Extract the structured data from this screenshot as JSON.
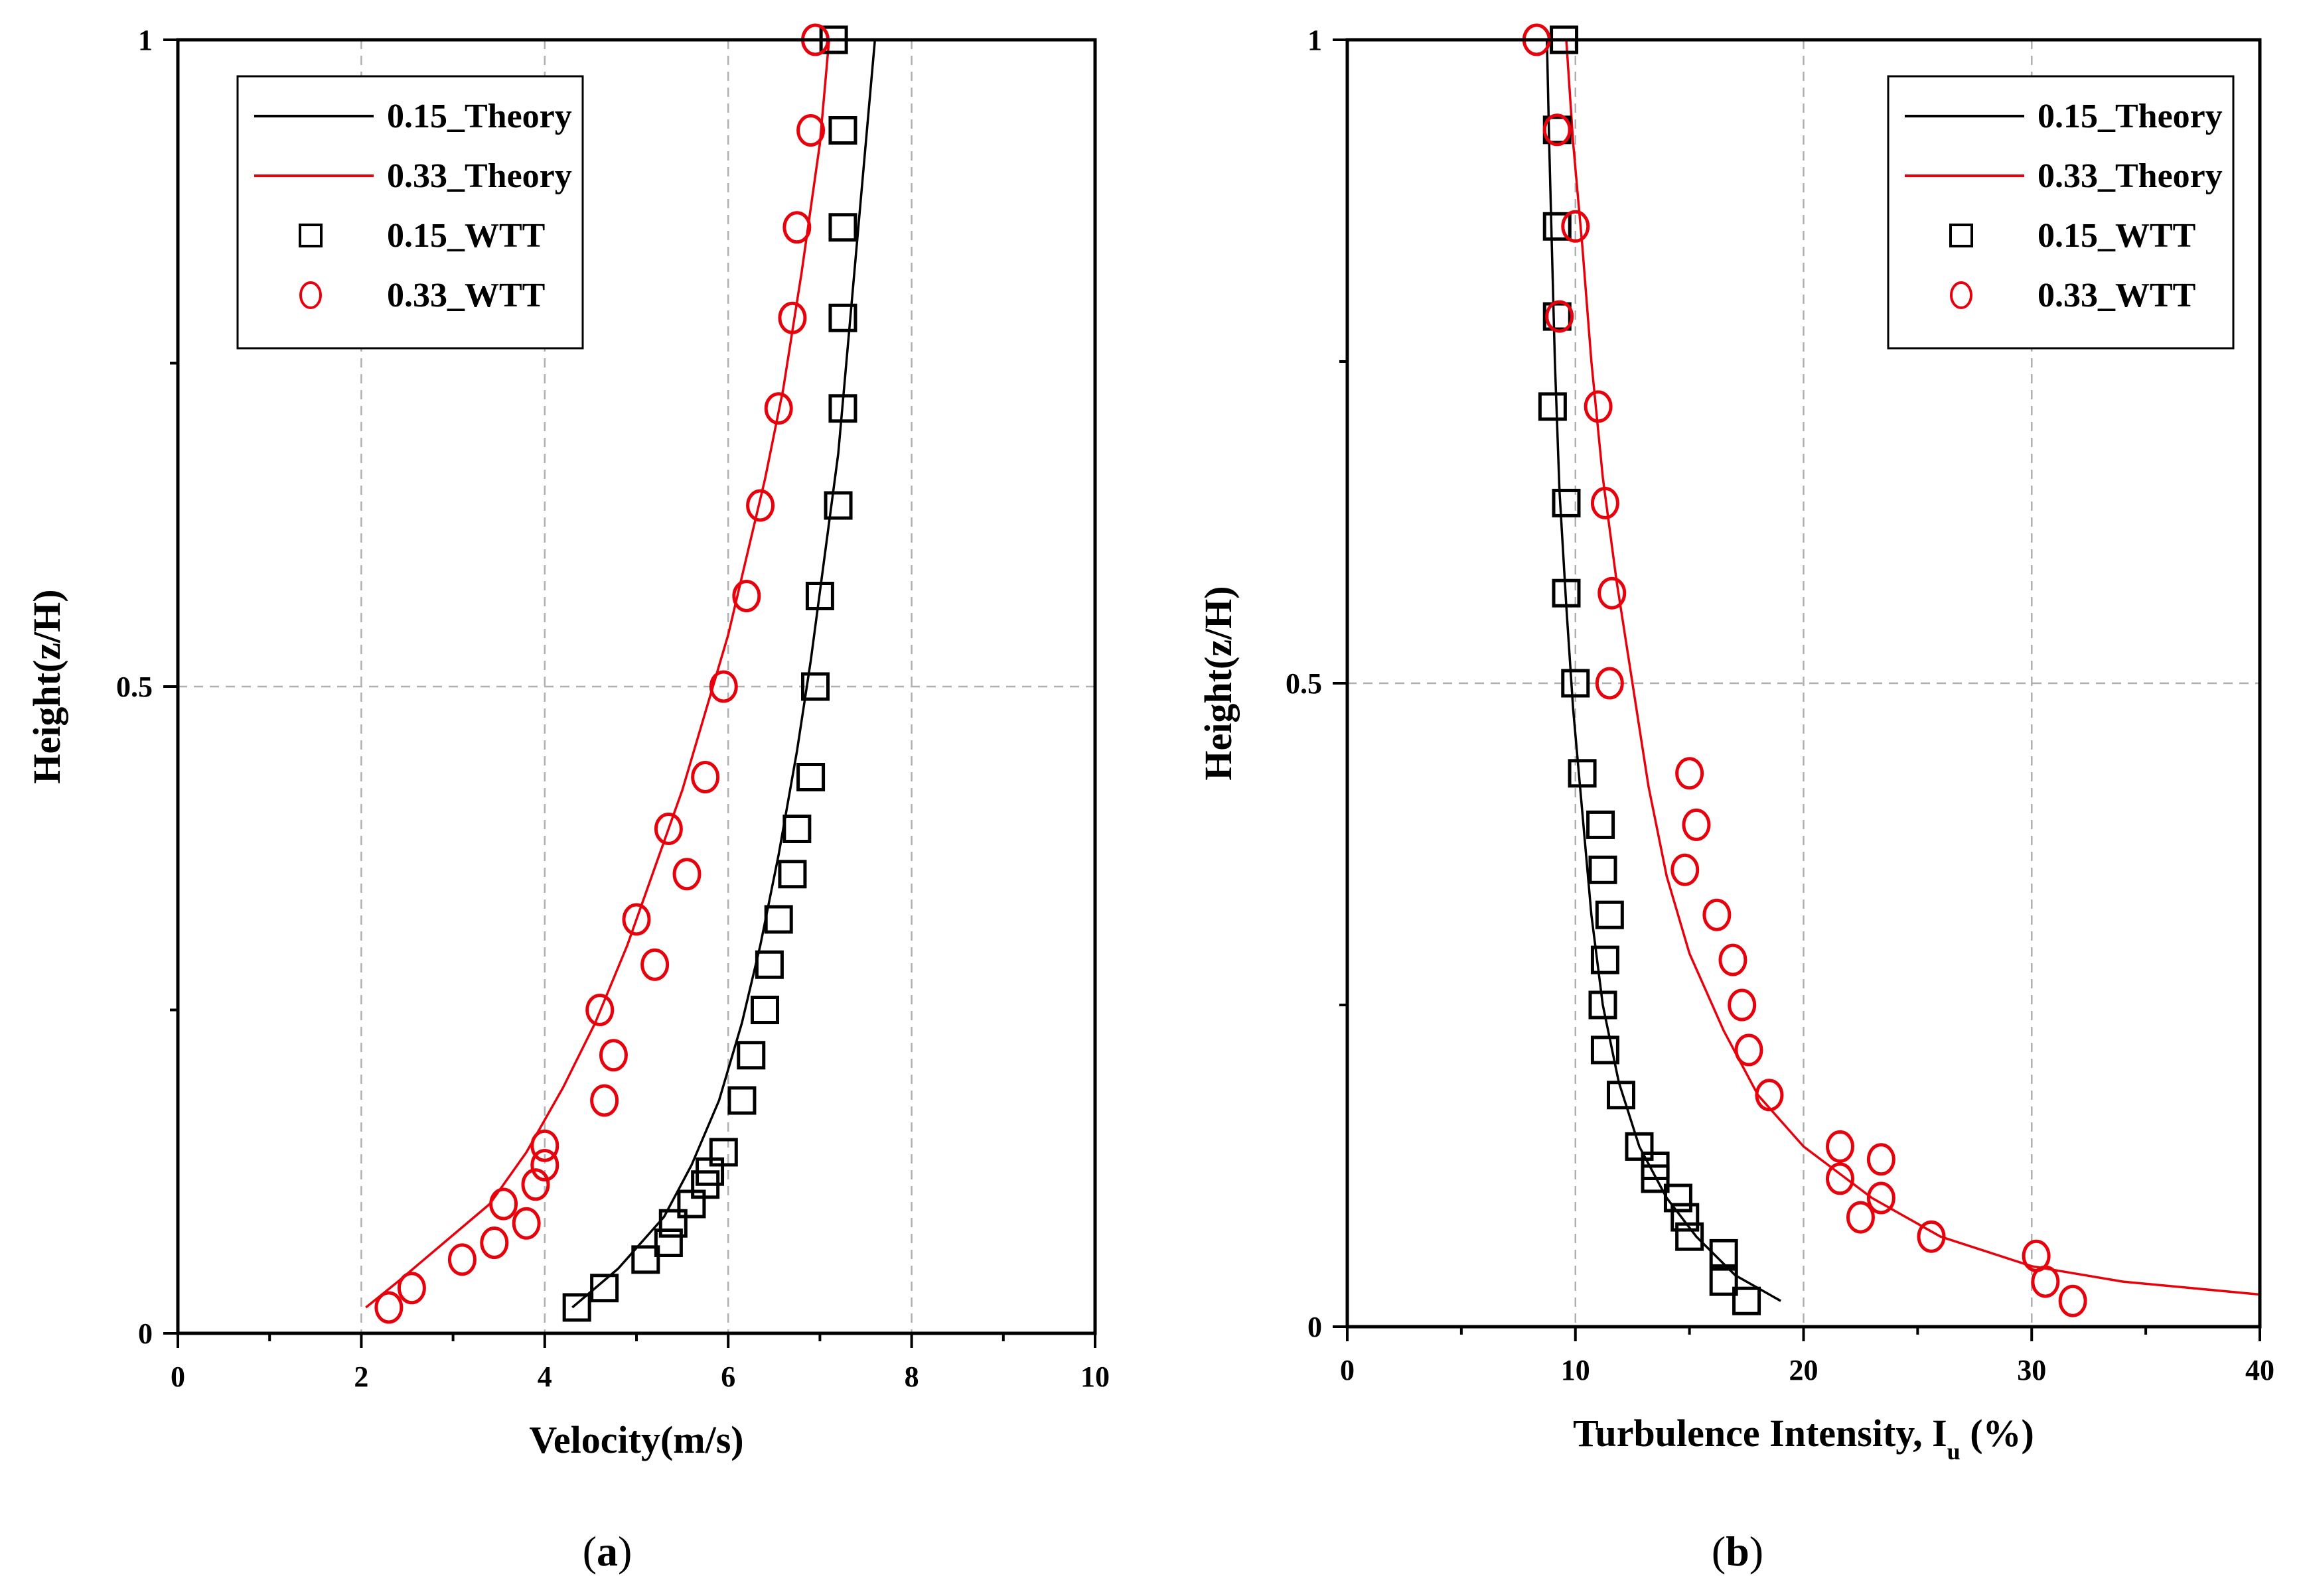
{
  "chart_data": [
    {
      "type": "line",
      "panel_label": "a",
      "xlabel": "Velocity(m/s)",
      "ylabel": "Height(z/H)",
      "xlim": [
        0,
        10
      ],
      "ylim": [
        0,
        1
      ],
      "xticks": [
        "0",
        "2",
        "4",
        "6",
        "8",
        "10"
      ],
      "yticks": [
        "0",
        "0.5",
        "1"
      ],
      "grid": "dashed",
      "legend_position": "top-left",
      "series": [
        {
          "name": "0.15_Theory",
          "kind": "line",
          "color": "#000000",
          "points": [
            [
              4.3,
              0.02
            ],
            [
              4.8,
              0.05
            ],
            [
              5.3,
              0.09
            ],
            [
              5.6,
              0.13
            ],
            [
              5.9,
              0.18
            ],
            [
              6.15,
              0.24
            ],
            [
              6.35,
              0.3
            ],
            [
              6.55,
              0.37
            ],
            [
              6.75,
              0.45
            ],
            [
              6.9,
              0.52
            ],
            [
              7.05,
              0.6
            ],
            [
              7.2,
              0.68
            ],
            [
              7.3,
              0.76
            ],
            [
              7.4,
              0.84
            ],
            [
              7.5,
              0.92
            ],
            [
              7.6,
              1.0
            ]
          ]
        },
        {
          "name": "0.33_Theory",
          "kind": "line",
          "color": "#e8000b",
          "points": [
            [
              2.05,
              0.02
            ],
            [
              2.4,
              0.04
            ],
            [
              2.9,
              0.07
            ],
            [
              3.4,
              0.1
            ],
            [
              3.8,
              0.14
            ],
            [
              4.2,
              0.19
            ],
            [
              4.55,
              0.24
            ],
            [
              4.9,
              0.3
            ],
            [
              5.2,
              0.36
            ],
            [
              5.5,
              0.42
            ],
            [
              5.75,
              0.48
            ],
            [
              6.0,
              0.54
            ],
            [
              6.2,
              0.6
            ],
            [
              6.4,
              0.66
            ],
            [
              6.6,
              0.73
            ],
            [
              6.8,
              0.82
            ],
            [
              7.0,
              0.92
            ],
            [
              7.1,
              1.0
            ]
          ]
        },
        {
          "name": "0.15_WTT",
          "kind": "square",
          "color": "#000000",
          "points": [
            [
              4.35,
              0.02
            ],
            [
              4.65,
              0.035
            ],
            [
              5.1,
              0.057
            ],
            [
              5.35,
              0.07
            ],
            [
              5.4,
              0.085
            ],
            [
              5.6,
              0.1
            ],
            [
              5.75,
              0.115
            ],
            [
              5.8,
              0.125
            ],
            [
              5.95,
              0.14
            ],
            [
              6.15,
              0.18
            ],
            [
              6.25,
              0.215
            ],
            [
              6.4,
              0.25
            ],
            [
              6.45,
              0.285
            ],
            [
              6.55,
              0.32
            ],
            [
              6.7,
              0.355
            ],
            [
              6.75,
              0.39
            ],
            [
              6.9,
              0.43
            ],
            [
              6.95,
              0.5
            ],
            [
              7.0,
              0.57
            ],
            [
              7.2,
              0.64
            ],
            [
              7.25,
              0.715
            ],
            [
              7.25,
              0.785
            ],
            [
              7.25,
              0.855
            ],
            [
              7.25,
              0.93
            ],
            [
              7.15,
              1.0
            ]
          ]
        },
        {
          "name": "0.33_WTT",
          "kind": "circle",
          "color": "#e8000b",
          "points": [
            [
              2.3,
              0.02
            ],
            [
              2.55,
              0.035
            ],
            [
              3.1,
              0.057
            ],
            [
              3.45,
              0.07
            ],
            [
              3.55,
              0.1
            ],
            [
              3.8,
              0.085
            ],
            [
              3.9,
              0.115
            ],
            [
              4.0,
              0.13
            ],
            [
              4.0,
              0.145
            ],
            [
              4.65,
              0.18
            ],
            [
              4.6,
              0.25
            ],
            [
              4.75,
              0.215
            ],
            [
              5.0,
              0.32
            ],
            [
              5.2,
              0.285
            ],
            [
              5.35,
              0.39
            ],
            [
              5.55,
              0.355
            ],
            [
              5.75,
              0.43
            ],
            [
              5.95,
              0.5
            ],
            [
              6.2,
              0.57
            ],
            [
              6.35,
              0.64
            ],
            [
              6.55,
              0.715
            ],
            [
              6.7,
              0.785
            ],
            [
              6.75,
              0.855
            ],
            [
              6.9,
              0.93
            ],
            [
              6.95,
              1.0
            ]
          ]
        }
      ]
    },
    {
      "type": "line",
      "panel_label": "b",
      "xlabel_main": "Turbulence Intensity, I",
      "xlabel_sub": "u",
      "xlabel_tail": " (%)",
      "ylabel": "Height(z/H)",
      "xlim": [
        0,
        40
      ],
      "ylim": [
        0,
        1
      ],
      "xticks": [
        "0",
        "10",
        "20",
        "30",
        "40"
      ],
      "yticks": [
        "0",
        "0.5",
        "1"
      ],
      "grid": "dashed",
      "legend_position": "top-right",
      "series": [
        {
          "name": "0.15_Theory",
          "kind": "line",
          "color": "#000000",
          "points": [
            [
              19.0,
              0.02
            ],
            [
              17.0,
              0.04
            ],
            [
              15.3,
              0.07
            ],
            [
              14.0,
              0.1
            ],
            [
              12.8,
              0.14
            ],
            [
              11.9,
              0.19
            ],
            [
              11.2,
              0.25
            ],
            [
              10.7,
              0.32
            ],
            [
              10.3,
              0.4
            ],
            [
              9.9,
              0.48
            ],
            [
              9.6,
              0.56
            ],
            [
              9.3,
              0.65
            ],
            [
              9.1,
              0.75
            ],
            [
              8.95,
              0.85
            ],
            [
              8.85,
              0.92
            ],
            [
              8.75,
              1.0
            ]
          ]
        },
        {
          "name": "0.33_Theory",
          "kind": "line",
          "color": "#e8000b",
          "points": [
            [
              40,
              0.025
            ],
            [
              34,
              0.035
            ],
            [
              30,
              0.047
            ],
            [
              26,
              0.07
            ],
            [
              23,
              0.1
            ],
            [
              20,
              0.14
            ],
            [
              18.0,
              0.18
            ],
            [
              16.5,
              0.23
            ],
            [
              15.0,
              0.29
            ],
            [
              14.0,
              0.35
            ],
            [
              13.2,
              0.42
            ],
            [
              12.5,
              0.5
            ],
            [
              11.8,
              0.58
            ],
            [
              11.2,
              0.66
            ],
            [
              10.7,
              0.75
            ],
            [
              10.3,
              0.84
            ],
            [
              9.9,
              0.92
            ],
            [
              9.6,
              1.0
            ]
          ]
        },
        {
          "name": "0.15_WTT",
          "kind": "square",
          "color": "#000000",
          "points": [
            [
              17.5,
              0.02
            ],
            [
              16.5,
              0.035
            ],
            [
              16.5,
              0.057
            ],
            [
              15.0,
              0.07
            ],
            [
              14.8,
              0.085
            ],
            [
              14.5,
              0.1
            ],
            [
              13.5,
              0.115
            ],
            [
              13.5,
              0.125
            ],
            [
              12.8,
              0.14
            ],
            [
              12.0,
              0.18
            ],
            [
              11.3,
              0.215
            ],
            [
              11.2,
              0.25
            ],
            [
              11.3,
              0.285
            ],
            [
              11.5,
              0.32
            ],
            [
              11.2,
              0.355
            ],
            [
              11.1,
              0.39
            ],
            [
              10.3,
              0.43
            ],
            [
              10.0,
              0.5
            ],
            [
              9.6,
              0.57
            ],
            [
              9.6,
              0.64
            ],
            [
              9.0,
              0.715
            ],
            [
              9.2,
              0.785
            ],
            [
              9.2,
              0.855
            ],
            [
              9.2,
              0.93
            ],
            [
              9.5,
              1.0
            ]
          ]
        },
        {
          "name": "0.33_WTT",
          "kind": "circle",
          "color": "#e8000b",
          "points": [
            [
              31.8,
              0.02
            ],
            [
              30.6,
              0.035
            ],
            [
              30.2,
              0.055
            ],
            [
              25.6,
              0.07
            ],
            [
              22.5,
              0.085
            ],
            [
              23.4,
              0.1
            ],
            [
              21.6,
              0.115
            ],
            [
              21.6,
              0.14
            ],
            [
              23.4,
              0.13
            ],
            [
              18.5,
              0.18
            ],
            [
              17.6,
              0.215
            ],
            [
              17.3,
              0.25
            ],
            [
              16.9,
              0.285
            ],
            [
              16.2,
              0.32
            ],
            [
              14.8,
              0.355
            ],
            [
              15.3,
              0.39
            ],
            [
              15.0,
              0.43
            ],
            [
              11.5,
              0.5
            ],
            [
              11.6,
              0.57
            ],
            [
              11.3,
              0.64
            ],
            [
              11.0,
              0.715
            ],
            [
              9.3,
              0.785
            ],
            [
              10.0,
              0.855
            ],
            [
              9.2,
              0.93
            ],
            [
              8.3,
              1.0
            ]
          ]
        }
      ]
    }
  ]
}
